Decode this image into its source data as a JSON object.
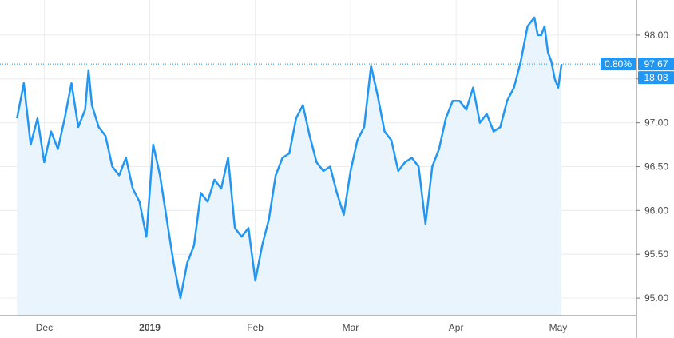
{
  "chart_data": {
    "type": "area",
    "title": "",
    "xlabel": "",
    "ylabel": "",
    "x_ticks": [
      "Dec",
      "2019",
      "Feb",
      "Mar",
      "Apr",
      "May"
    ],
    "y_ticks": [
      "95.00",
      "95.50",
      "96.00",
      "96.50",
      "97.00",
      "97.50",
      "98.00"
    ],
    "ylim": [
      94.8,
      98.4
    ],
    "grid": true,
    "legend": "none",
    "last_price": "97.67",
    "change_percent": "0.80%",
    "countdown": "18:03",
    "colors": {
      "line": "#2196f3",
      "area": "#eaf4fd",
      "price_badge": "#2196f3",
      "grid": "#ececec",
      "axis": "#7a7a7a"
    },
    "series": [
      {
        "x": [
          "2018-11-23",
          "2018-11-25",
          "2018-11-27",
          "2018-11-29",
          "2018-12-01",
          "2018-12-03",
          "2018-12-05",
          "2018-12-07",
          "2018-12-09",
          "2018-12-11",
          "2018-12-13",
          "2018-12-14",
          "2018-12-15",
          "2018-12-17",
          "2018-12-19",
          "2018-12-21",
          "2018-12-23",
          "2018-12-25",
          "2018-12-27",
          "2018-12-29",
          "2018-12-31",
          "2019-01-02",
          "2019-01-04",
          "2019-01-06",
          "2019-01-08",
          "2019-01-10",
          "2019-01-12",
          "2019-01-14",
          "2019-01-16",
          "2019-01-18",
          "2019-01-20",
          "2019-01-22",
          "2019-01-24",
          "2019-01-26",
          "2019-01-28",
          "2019-01-30",
          "2019-02-01",
          "2019-02-03",
          "2019-02-05",
          "2019-02-07",
          "2019-02-09",
          "2019-02-11",
          "2019-02-13",
          "2019-02-15",
          "2019-02-17",
          "2019-02-19",
          "2019-02-21",
          "2019-02-23",
          "2019-02-25",
          "2019-02-27",
          "2019-03-01",
          "2019-03-03",
          "2019-03-05",
          "2019-03-07",
          "2019-03-09",
          "2019-03-11",
          "2019-03-13",
          "2019-03-15",
          "2019-03-17",
          "2019-03-19",
          "2019-03-21",
          "2019-03-23",
          "2019-03-25",
          "2019-03-27",
          "2019-03-29",
          "2019-03-31",
          "2019-04-02",
          "2019-04-04",
          "2019-04-06",
          "2019-04-08",
          "2019-04-10",
          "2019-04-12",
          "2019-04-14",
          "2019-04-16",
          "2019-04-18",
          "2019-04-20",
          "2019-04-22",
          "2019-04-24",
          "2019-04-25",
          "2019-04-26",
          "2019-04-27",
          "2019-04-28",
          "2019-04-29",
          "2019-04-30",
          "2019-05-01",
          "2019-05-02"
        ],
        "values": [
          97.05,
          97.45,
          96.75,
          97.05,
          96.55,
          96.9,
          96.7,
          97.05,
          97.45,
          96.95,
          97.15,
          97.6,
          97.2,
          96.95,
          96.85,
          96.5,
          96.4,
          96.6,
          96.25,
          96.1,
          95.7,
          96.75,
          96.4,
          95.9,
          95.4,
          95.0,
          95.4,
          95.6,
          96.2,
          96.1,
          96.35,
          96.25,
          96.6,
          95.8,
          95.7,
          95.8,
          95.2,
          95.6,
          95.9,
          96.4,
          96.6,
          96.65,
          97.05,
          97.2,
          96.85,
          96.55,
          96.45,
          96.5,
          96.2,
          95.95,
          96.45,
          96.8,
          96.95,
          97.65,
          97.3,
          96.9,
          96.8,
          96.45,
          96.55,
          96.6,
          96.5,
          95.85,
          96.5,
          96.7,
          97.05,
          97.25,
          97.25,
          97.15,
          97.4,
          97.0,
          97.1,
          96.9,
          96.95,
          97.25,
          97.4,
          97.7,
          98.1,
          98.2,
          98.0,
          98.0,
          98.1,
          97.8,
          97.7,
          97.5,
          97.4,
          97.67
        ]
      }
    ]
  }
}
